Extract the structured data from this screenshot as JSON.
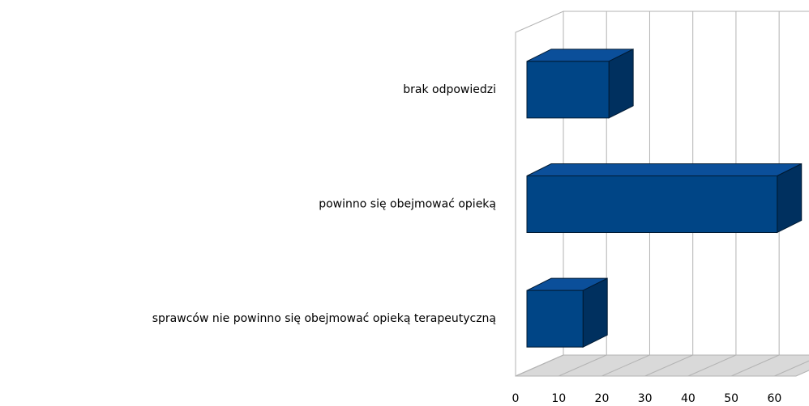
{
  "chart_data": {
    "type": "bar3d_horizontal",
    "categories": [
      "brak odpowiedzi",
      "powinno się obejmować opieką",
      "sprawców nie powinno się obejmować opieką terapeutyczną"
    ],
    "values": [
      19,
      58,
      13
    ],
    "color": "#004586",
    "xlim": [
      0,
      65
    ],
    "xticks": [
      0,
      10,
      20,
      30,
      40,
      50,
      60
    ],
    "grid": true
  }
}
